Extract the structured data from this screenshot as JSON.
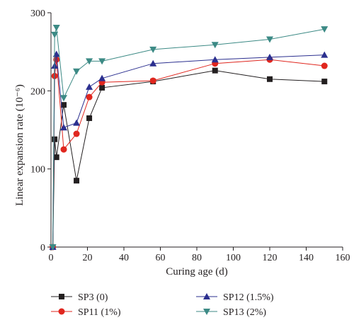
{
  "chart_data": {
    "type": "line",
    "title": "",
    "xlabel": "Curing age (d)",
    "ylabel": "Linear expansion rate (10⁻⁶)",
    "xlim": [
      0,
      160
    ],
    "ylim": [
      0,
      300
    ],
    "xticks": [
      "0",
      "20",
      "40",
      "60",
      "80",
      "100",
      "120",
      "140",
      "160"
    ],
    "yticks": [
      "0",
      "100",
      "200",
      "300"
    ],
    "grid": false,
    "legend_position": "bottom",
    "series": [
      {
        "name": "SP3 (0)",
        "color": "#231f20",
        "marker": "square",
        "x": [
          1,
          2,
          3,
          7,
          14,
          21,
          28,
          56,
          90,
          120,
          150
        ],
        "y": [
          0,
          138,
          115,
          182,
          85,
          165,
          204,
          212,
          226,
          215,
          212
        ]
      },
      {
        "name": "SP11 (1%)",
        "color": "#e0261e",
        "marker": "circle",
        "x": [
          1,
          2,
          3,
          7,
          14,
          21,
          28,
          56,
          90,
          120,
          150
        ],
        "y": [
          0,
          219,
          240,
          125,
          145,
          192,
          211,
          213,
          235,
          240,
          232
        ]
      },
      {
        "name": "SP12 (1.5%)",
        "color": "#2b2f8f",
        "marker": "triangle-up",
        "x": [
          1,
          2,
          3,
          7,
          14,
          21,
          28,
          56,
          90,
          120,
          150
        ],
        "y": [
          0,
          232,
          247,
          153,
          159,
          205,
          216,
          235,
          240,
          243,
          246
        ]
      },
      {
        "name": "SP13 (2%)",
        "color": "#3c8a85",
        "marker": "triangle-down",
        "x": [
          1,
          2,
          3,
          7,
          14,
          21,
          28,
          56,
          90,
          120,
          150
        ],
        "y": [
          0,
          272,
          281,
          191,
          225,
          238,
          238,
          253,
          259,
          266,
          279
        ]
      }
    ]
  }
}
